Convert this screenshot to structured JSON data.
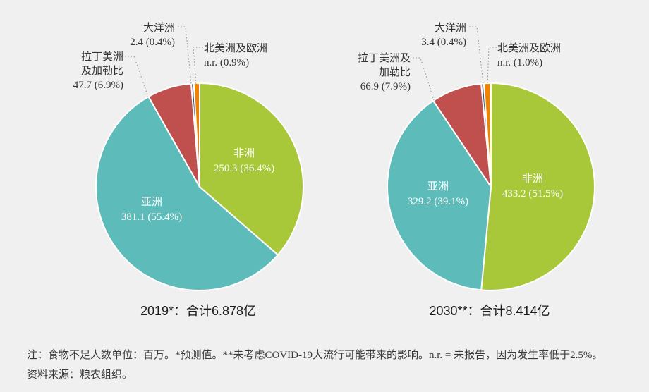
{
  "background_color": "#f0f0f0",
  "palette": {
    "africa": "#a8c83a",
    "asia": "#5dbcba",
    "latin_america_caribbean": "#c0504d",
    "oceania": "#3d4e66",
    "northern_america_europe": "#ef8301",
    "leader_line": "#8a8a8a",
    "slice_separator": "#ffffff"
  },
  "chart_data": [
    {
      "type": "pie",
      "title": "2019*：合计6.878亿",
      "slices": [
        {
          "key": "africa",
          "label": "非洲",
          "value": 250.3,
          "pct": 36.4,
          "color": "#a8c83a",
          "value_display": "250.3 (36.4%)"
        },
        {
          "key": "asia",
          "label": "亚洲",
          "value": 381.1,
          "pct": 55.4,
          "color": "#5dbcba",
          "value_display": "381.1 (55.4%)"
        },
        {
          "key": "latin-america-caribbean",
          "label": "拉丁美洲及加勒比",
          "value": 47.7,
          "pct": 6.9,
          "color": "#c0504d",
          "value_display": "47.7 (6.9%)"
        },
        {
          "key": "oceania",
          "label": "大洋洲",
          "value": 2.4,
          "pct": 0.4,
          "color": "#3d4e66",
          "value_display": "2.4 (0.4%)"
        },
        {
          "key": "northern-america-europe",
          "label": "北美洲及欧洲",
          "value": "n.r.",
          "pct": 0.9,
          "color": "#ef8301",
          "value_display": "n.r. (0.9%)"
        }
      ],
      "callouts": {
        "latam": {
          "lines": [
            "拉丁美洲",
            "及加勒比",
            "47.7 (6.9%)"
          ]
        },
        "oceania": {
          "lines": [
            "大洋洲",
            "2.4 (0.4%)"
          ]
        },
        "nae": {
          "lines": [
            "北美洲及欧洲",
            "n.r. (0.9%)"
          ]
        }
      }
    },
    {
      "type": "pie",
      "title": "2030**：合计8.414亿",
      "slices": [
        {
          "key": "africa",
          "label": "非洲",
          "value": 433.2,
          "pct": 51.5,
          "color": "#a8c83a",
          "value_display": "433.2 (51.5%)"
        },
        {
          "key": "asia",
          "label": "亚洲",
          "value": 329.2,
          "pct": 39.1,
          "color": "#5dbcba",
          "value_display": "329.2 (39.1%)"
        },
        {
          "key": "latin-america-caribbean",
          "label": "拉丁美洲及加勒比",
          "value": 66.9,
          "pct": 7.9,
          "color": "#c0504d",
          "value_display": "66.9 (7.9%)"
        },
        {
          "key": "oceania",
          "label": "大洋洲",
          "value": 3.4,
          "pct": 0.4,
          "color": "#3d4e66",
          "value_display": "3.4 (0.4%)"
        },
        {
          "key": "northern-america-europe",
          "label": "北美洲及欧洲",
          "value": "n.r.",
          "pct": 1.0,
          "color": "#ef8301",
          "value_display": "n.r. (1.0%)"
        }
      ],
      "callouts": {
        "latam": {
          "lines": [
            "拉丁美洲及",
            "加勒比",
            "66.9 (7.9%)"
          ]
        },
        "oceania": {
          "lines": [
            "大洋洲",
            "3.4 (0.4%)"
          ]
        },
        "nae": {
          "lines": [
            "北美洲及欧洲",
            "n.r. (1.0%)"
          ]
        }
      }
    }
  ],
  "notes": {
    "line1": "注：食物不足人数单位：百万。*预测值。**未考虑COVID-19大流行可能带来的影响。n.r. = 未报告，因为发生率低于2.5%。",
    "line2": "资料来源：粮农组织。"
  }
}
